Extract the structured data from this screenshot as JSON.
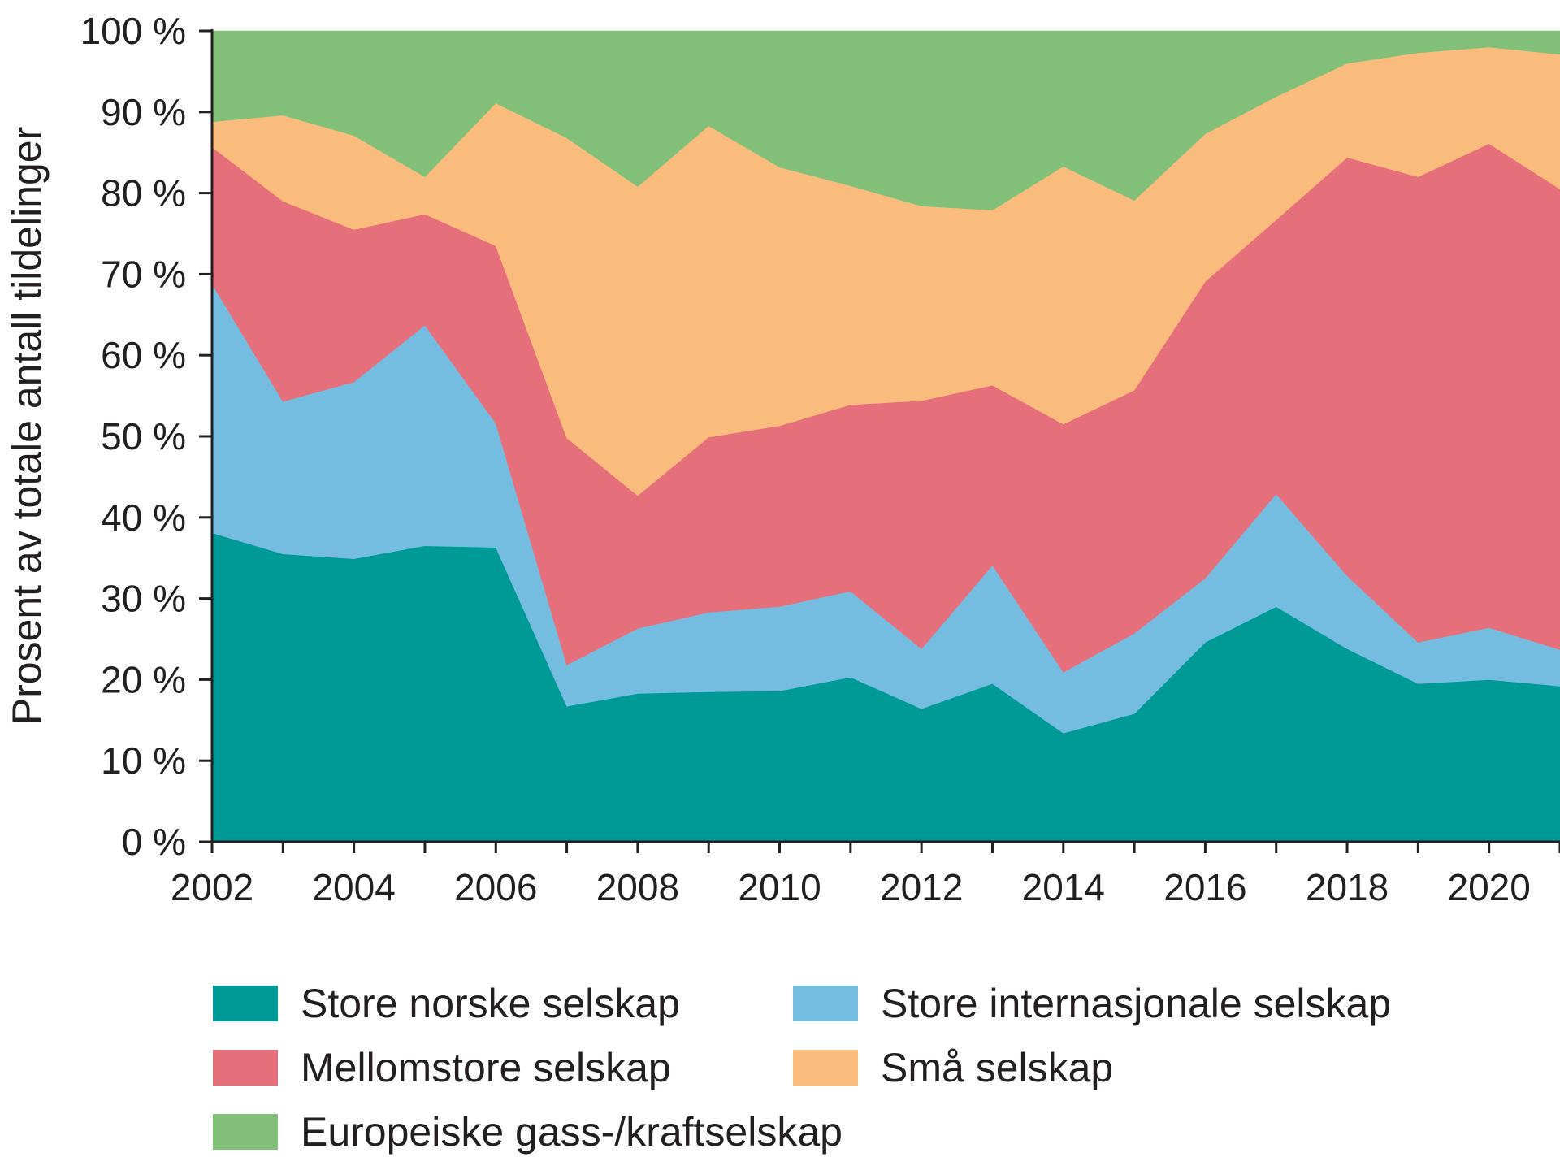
{
  "chart_data": {
    "type": "area",
    "stacked": true,
    "ylabel": "Prosent av totale antall tildelinger",
    "xlabel": "",
    "x": [
      2002,
      2003,
      2004,
      2005,
      2006,
      2007,
      2008,
      2009,
      2010,
      2011,
      2012,
      2013,
      2014,
      2015,
      2016,
      2017,
      2018,
      2019,
      2020,
      2021
    ],
    "xticks": [
      "2002",
      "2004",
      "2006",
      "2008",
      "2010",
      "2012",
      "2014",
      "2016",
      "2018",
      "2020"
    ],
    "xlim": [
      2002,
      2021
    ],
    "ylim": [
      0,
      100
    ],
    "yticks": [
      "0 %",
      "10 %",
      "20 %",
      "30 %",
      "40 %",
      "50 %",
      "60 %",
      "70 %",
      "80 %",
      "90 %",
      "100 %"
    ],
    "grid": false,
    "legend_position": "bottom",
    "series": [
      {
        "name": "Store norske selskap",
        "color": "#009a96",
        "values": [
          38.1,
          35.5,
          34.9,
          36.5,
          36.3,
          16.7,
          18.3,
          18.5,
          18.6,
          20.3,
          16.4,
          19.5,
          13.4,
          15.8,
          24.6,
          29.0,
          23.8,
          19.5,
          20.0,
          19.2
        ]
      },
      {
        "name": "Store internasjonale selskap",
        "color": "#74bde1",
        "values": [
          30.7,
          18.8,
          21.8,
          27.2,
          15.3,
          5.1,
          8.0,
          9.8,
          10.4,
          10.6,
          7.4,
          14.6,
          7.5,
          9.9,
          7.9,
          13.9,
          9.0,
          5.1,
          6.4,
          4.5
        ]
      },
      {
        "name": "Mellomstore selskap",
        "color": "#e5707c",
        "values": [
          16.9,
          24.7,
          18.8,
          13.7,
          21.9,
          28.0,
          16.4,
          21.6,
          22.3,
          23.0,
          30.6,
          22.2,
          30.6,
          30.0,
          36.6,
          33.8,
          51.6,
          57.4,
          59.7,
          56.8
        ]
      },
      {
        "name": "Små selskap",
        "color": "#f9bc7c",
        "values": [
          3.1,
          10.6,
          11.6,
          4.6,
          17.6,
          37.0,
          38.1,
          38.4,
          31.9,
          27.0,
          24.0,
          21.6,
          31.8,
          23.4,
          18.2,
          15.2,
          11.6,
          15.3,
          11.9,
          16.6
        ]
      },
      {
        "name": "Europeiske gass-/kraftselskap",
        "color": "#82c079",
        "values": [
          11.2,
          10.4,
          12.9,
          18.0,
          8.9,
          13.2,
          19.2,
          11.7,
          16.8,
          19.1,
          21.6,
          22.1,
          16.7,
          20.9,
          12.7,
          8.1,
          4.0,
          2.7,
          2.0,
          2.9
        ]
      }
    ]
  }
}
